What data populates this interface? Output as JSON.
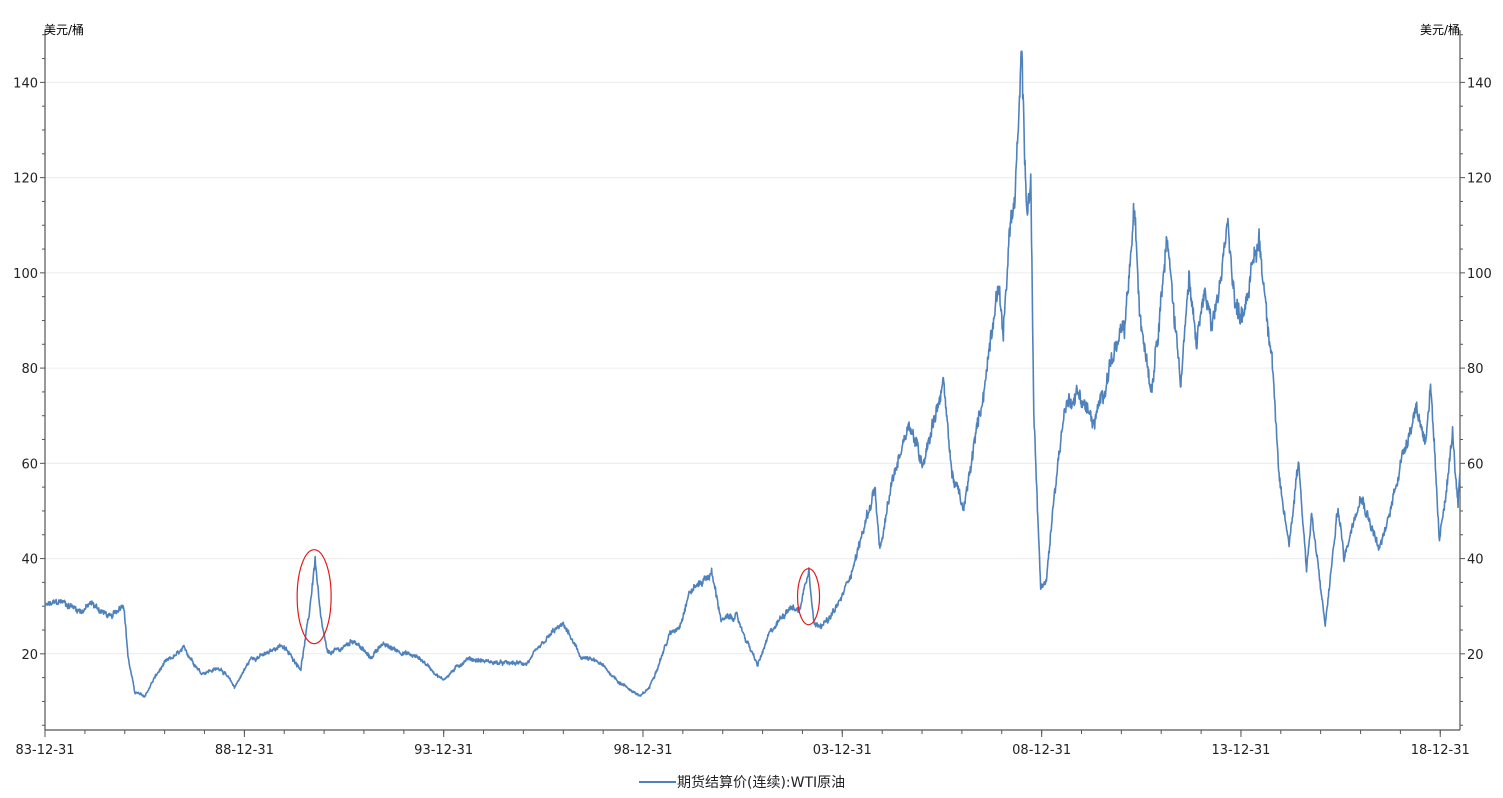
{
  "chart_data": {
    "type": "line",
    "title": "",
    "left_unit": "美元/桶",
    "right_unit": "美元/桶",
    "xlabel": "",
    "ylabel": "",
    "x_start": "83-12-31",
    "x_end": "19-06-30",
    "x_ticks": [
      "83-12-31",
      "88-12-31",
      "93-12-31",
      "98-12-31",
      "03-12-31",
      "08-12-31",
      "13-12-31",
      "18-12-31"
    ],
    "ylim": [
      4,
      151
    ],
    "y_ticks": [
      20,
      40,
      60,
      80,
      100,
      120,
      140
    ],
    "y_tick_labels": [
      "20",
      "40",
      "60",
      "80",
      "100",
      "120",
      "140"
    ],
    "grid": "horizontal",
    "legend_position": "bottom-center",
    "series": [
      {
        "name": "期货结算价(连续):WTI原油",
        "color": "#4f81bd",
        "points": [
          [
            "1983-12-31",
            30
          ],
          [
            "1984-06-01",
            31
          ],
          [
            "1984-12-01",
            29
          ],
          [
            "1985-03-01",
            30.5
          ],
          [
            "1985-09-01",
            27.5
          ],
          [
            "1985-12-20",
            31
          ],
          [
            "1986-02-01",
            19
          ],
          [
            "1986-04-01",
            12
          ],
          [
            "1986-07-01",
            11
          ],
          [
            "1986-10-01",
            15
          ],
          [
            "1987-01-01",
            18
          ],
          [
            "1987-07-01",
            21
          ],
          [
            "1987-12-01",
            16
          ],
          [
            "1988-06-01",
            17
          ],
          [
            "1988-10-01",
            13
          ],
          [
            "1989-03-01",
            19
          ],
          [
            "1989-08-01",
            20
          ],
          [
            "1989-12-01",
            22
          ],
          [
            "1990-06-01",
            17
          ],
          [
            "1990-08-15",
            28
          ],
          [
            "1990-10-10",
            40
          ],
          [
            "1990-12-01",
            27
          ],
          [
            "1991-02-01",
            20
          ],
          [
            "1991-06-01",
            21
          ],
          [
            "1991-10-01",
            23
          ],
          [
            "1992-03-01",
            19
          ],
          [
            "1992-06-01",
            22
          ],
          [
            "1993-06-01",
            19
          ],
          [
            "1993-12-20",
            14.5
          ],
          [
            "1994-08-01",
            19
          ],
          [
            "1995-06-01",
            18
          ],
          [
            "1996-02-01",
            18
          ],
          [
            "1996-10-15",
            25
          ],
          [
            "1997-01-10",
            26
          ],
          [
            "1997-06-01",
            19.5
          ],
          [
            "1997-12-01",
            18
          ],
          [
            "1998-06-01",
            14
          ],
          [
            "1998-12-10",
            11
          ],
          [
            "1999-03-01",
            13
          ],
          [
            "1999-09-01",
            24
          ],
          [
            "1999-12-01",
            26
          ],
          [
            "2000-03-01",
            33
          ],
          [
            "2000-09-20",
            37
          ],
          [
            "2000-12-20",
            27
          ],
          [
            "2001-05-01",
            28
          ],
          [
            "2001-11-15",
            17.5
          ],
          [
            "2002-03-01",
            24
          ],
          [
            "2002-09-01",
            30
          ],
          [
            "2002-12-01",
            29
          ],
          [
            "2003-02-28",
            38
          ],
          [
            "2003-04-20",
            26
          ],
          [
            "2003-09-01",
            27
          ],
          [
            "2003-12-31",
            32
          ],
          [
            "2004-05-01",
            40
          ],
          [
            "2004-10-25",
            55
          ],
          [
            "2004-12-10",
            41
          ],
          [
            "2005-04-01",
            56
          ],
          [
            "2005-08-30",
            69
          ],
          [
            "2006-01-01",
            60
          ],
          [
            "2006-07-14",
            77
          ],
          [
            "2006-10-01",
            58
          ],
          [
            "2007-01-18",
            50
          ],
          [
            "2007-05-01",
            65
          ],
          [
            "2007-08-01",
            77
          ],
          [
            "2007-11-20",
            98
          ],
          [
            "2008-01-15",
            88
          ],
          [
            "2008-03-15",
            110
          ],
          [
            "2008-05-01",
            115
          ],
          [
            "2008-07-03",
            145
          ],
          [
            "2008-08-15",
            112
          ],
          [
            "2008-09-22",
            120
          ],
          [
            "2008-10-20",
            70
          ],
          [
            "2008-12-22",
            34
          ],
          [
            "2009-02-12",
            35
          ],
          [
            "2009-05-01",
            55
          ],
          [
            "2009-08-01",
            72
          ],
          [
            "2009-12-01",
            75
          ],
          [
            "2010-05-01",
            68
          ],
          [
            "2010-10-01",
            82
          ],
          [
            "2011-02-01",
            88
          ],
          [
            "2011-04-29",
            113
          ],
          [
            "2011-06-15",
            93
          ],
          [
            "2011-10-04",
            76
          ],
          [
            "2012-02-20",
            107
          ],
          [
            "2012-06-25",
            78
          ],
          [
            "2012-09-10",
            98
          ],
          [
            "2012-11-15",
            85
          ],
          [
            "2013-02-01",
            96
          ],
          [
            "2013-04-15",
            87
          ],
          [
            "2013-09-06",
            110
          ],
          [
            "2013-11-15",
            92
          ],
          [
            "2014-01-15",
            92
          ],
          [
            "2014-06-15",
            107
          ],
          [
            "2014-08-01",
            97
          ],
          [
            "2014-10-15",
            82
          ],
          [
            "2014-12-15",
            56
          ],
          [
            "2015-03-17",
            43
          ],
          [
            "2015-06-10",
            61
          ],
          [
            "2015-08-24",
            38
          ],
          [
            "2015-10-10",
            49
          ],
          [
            "2016-02-11",
            26
          ],
          [
            "2016-06-08",
            51
          ],
          [
            "2016-08-02",
            40
          ],
          [
            "2016-12-28",
            54
          ],
          [
            "2017-06-21",
            42
          ],
          [
            "2017-09-01",
            47
          ],
          [
            "2017-12-30",
            60
          ],
          [
            "2018-05-22",
            72
          ],
          [
            "2018-08-15",
            65
          ],
          [
            "2018-10-03",
            76
          ],
          [
            "2018-12-24",
            43
          ],
          [
            "2019-04-23",
            66
          ],
          [
            "2019-06-12",
            51
          ],
          [
            "2019-06-30",
            58
          ]
        ]
      }
    ],
    "annotations": [
      {
        "type": "ellipse-highlight",
        "color": "#e31a1c",
        "x": "1990-10-01",
        "y": 32
      },
      {
        "type": "ellipse-highlight",
        "color": "#e31a1c",
        "x": "2003-02-25",
        "y": 32
      }
    ]
  }
}
